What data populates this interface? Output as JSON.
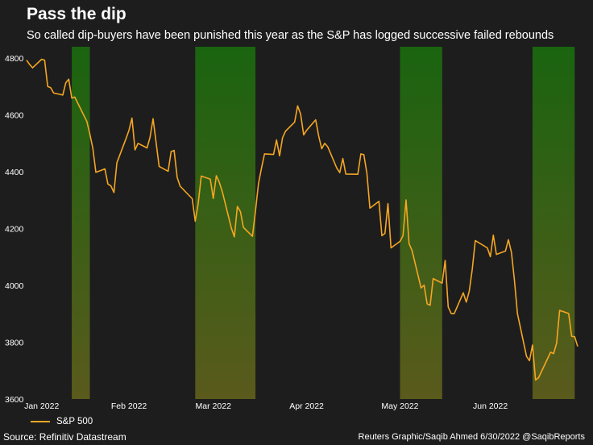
{
  "title": "Pass the dip",
  "subtitle": "So called dip-buyers have been punished this year as the S&P has logged successive failed rebounds",
  "source": "Source: Refinitiv Datastream",
  "credit": "Reuters Graphic/Saqib Ahmed 6/30/2022 @SaqibReports",
  "colors": {
    "background": "#1d1d1d",
    "line": "#f5a623",
    "band_top": "#1a6410",
    "band_bottom": "#5a5a1c"
  },
  "chart_data": {
    "type": "line",
    "title": "Pass the dip",
    "xlabel": "",
    "ylabel": "",
    "ylim": [
      3600,
      4840
    ],
    "yticks": [
      3600,
      3800,
      4000,
      4200,
      4400,
      4600,
      4800
    ],
    "x_range": [
      "2021-12-29",
      "2022-06-30"
    ],
    "xticks": [
      {
        "date": "2022-01-03",
        "label": "Jan 2022"
      },
      {
        "date": "2022-02-01",
        "label": "Feb 2022"
      },
      {
        "date": "2022-03-01",
        "label": "Mar 2022"
      },
      {
        "date": "2022-04-01",
        "label": "Apr 2022"
      },
      {
        "date": "2022-05-02",
        "label": "May 2022"
      },
      {
        "date": "2022-06-01",
        "label": "Jun 2022"
      }
    ],
    "legend": {
      "position": "bottom-left",
      "entries": [
        "S&P 500"
      ]
    },
    "shaded_periods": [
      {
        "start": "2022-01-13",
        "end": "2022-01-19"
      },
      {
        "start": "2022-02-23",
        "end": "2022-03-15"
      },
      {
        "start": "2022-05-02",
        "end": "2022-05-16"
      },
      {
        "start": "2022-06-15",
        "end": "2022-06-29"
      }
    ],
    "series": [
      {
        "name": "S&P 500",
        "dates": [
          "2021-12-29",
          "2021-12-30",
          "2021-12-31",
          "2022-01-03",
          "2022-01-04",
          "2022-01-05",
          "2022-01-06",
          "2022-01-07",
          "2022-01-10",
          "2022-01-11",
          "2022-01-12",
          "2022-01-13",
          "2022-01-14",
          "2022-01-18",
          "2022-01-19",
          "2022-01-20",
          "2022-01-21",
          "2022-01-24",
          "2022-01-25",
          "2022-01-26",
          "2022-01-27",
          "2022-01-28",
          "2022-01-31",
          "2022-02-01",
          "2022-02-02",
          "2022-02-03",
          "2022-02-04",
          "2022-02-07",
          "2022-02-08",
          "2022-02-09",
          "2022-02-10",
          "2022-02-11",
          "2022-02-14",
          "2022-02-15",
          "2022-02-16",
          "2022-02-17",
          "2022-02-18",
          "2022-02-22",
          "2022-02-23",
          "2022-02-24",
          "2022-02-25",
          "2022-02-28",
          "2022-03-01",
          "2022-03-02",
          "2022-03-03",
          "2022-03-04",
          "2022-03-07",
          "2022-03-08",
          "2022-03-09",
          "2022-03-10",
          "2022-03-11",
          "2022-03-14",
          "2022-03-15",
          "2022-03-16",
          "2022-03-17",
          "2022-03-18",
          "2022-03-21",
          "2022-03-22",
          "2022-03-23",
          "2022-03-24",
          "2022-03-25",
          "2022-03-28",
          "2022-03-29",
          "2022-03-30",
          "2022-03-31",
          "2022-04-01",
          "2022-04-04",
          "2022-04-05",
          "2022-04-06",
          "2022-04-07",
          "2022-04-08",
          "2022-04-11",
          "2022-04-12",
          "2022-04-13",
          "2022-04-14",
          "2022-04-18",
          "2022-04-19",
          "2022-04-20",
          "2022-04-21",
          "2022-04-22",
          "2022-04-25",
          "2022-04-26",
          "2022-04-27",
          "2022-04-28",
          "2022-04-29",
          "2022-05-02",
          "2022-05-03",
          "2022-05-04",
          "2022-05-05",
          "2022-05-06",
          "2022-05-09",
          "2022-05-10",
          "2022-05-11",
          "2022-05-12",
          "2022-05-13",
          "2022-05-16",
          "2022-05-17",
          "2022-05-18",
          "2022-05-19",
          "2022-05-20",
          "2022-05-23",
          "2022-05-24",
          "2022-05-25",
          "2022-05-26",
          "2022-05-27",
          "2022-05-31",
          "2022-06-01",
          "2022-06-02",
          "2022-06-03",
          "2022-06-06",
          "2022-06-07",
          "2022-06-08",
          "2022-06-09",
          "2022-06-10",
          "2022-06-13",
          "2022-06-14",
          "2022-06-15",
          "2022-06-16",
          "2022-06-17",
          "2022-06-21",
          "2022-06-22",
          "2022-06-23",
          "2022-06-24",
          "2022-06-27",
          "2022-06-28",
          "2022-06-29",
          "2022-06-30"
        ],
        "values": [
          4793,
          4778,
          4766,
          4796,
          4793,
          4700,
          4696,
          4677,
          4670,
          4713,
          4726,
          4659,
          4663,
          4577,
          4533,
          4483,
          4398,
          4410,
          4357,
          4350,
          4327,
          4432,
          4516,
          4546,
          4589,
          4477,
          4500,
          4484,
          4521,
          4587,
          4504,
          4419,
          4402,
          4471,
          4475,
          4380,
          4349,
          4305,
          4226,
          4288,
          4385,
          4374,
          4306,
          4386,
          4363,
          4329,
          4201,
          4171,
          4278,
          4260,
          4204,
          4173,
          4262,
          4358,
          4412,
          4463,
          4461,
          4512,
          4456,
          4520,
          4543,
          4575,
          4632,
          4603,
          4530,
          4546,
          4583,
          4525,
          4481,
          4500,
          4488,
          4413,
          4397,
          4447,
          4392,
          4391,
          4463,
          4460,
          4394,
          4272,
          4296,
          4175,
          4183,
          4288,
          4132,
          4155,
          4175,
          4301,
          4147,
          4123,
          3991,
          4001,
          3935,
          3930,
          4024,
          4008,
          4088,
          3924,
          3901,
          3901,
          3974,
          3941,
          3979,
          4058,
          4158,
          4132,
          4101,
          4177,
          4109,
          4121,
          4161,
          4116,
          4018,
          3901,
          3750,
          3735,
          3790,
          3667,
          3675,
          3765,
          3760,
          3796,
          3912,
          3901,
          3821,
          3819,
          3785
        ]
      }
    ]
  }
}
